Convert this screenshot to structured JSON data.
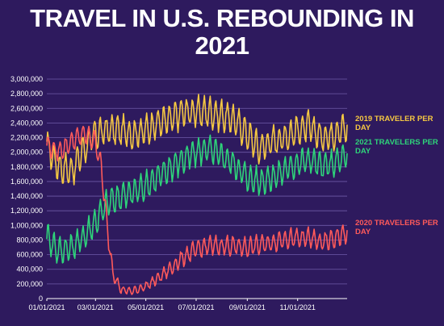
{
  "chart_data": {
    "type": "line",
    "title": "TRAVEL IN U.S. REBOUNDING IN 2021",
    "xlabel": "",
    "ylabel": "",
    "x_ticks": [
      "01/01/2021",
      "03/01/2021",
      "05/01/2021",
      "07/01/2021",
      "09/01/2021",
      "11/01/2021"
    ],
    "y_ticks": [
      "0",
      "200,000",
      "400,000",
      "600,000",
      "800,000",
      "1,000,000",
      "1,200,000",
      "1,400,000",
      "1,600,000",
      "1,800,000",
      "2,000,000",
      "2,200,000",
      "2,400,000",
      "2,600,000",
      "2,800,000",
      "3,000,000"
    ],
    "ylim": [
      0,
      3000000
    ],
    "x_range": [
      "2021-01-01",
      "2021-12-31"
    ],
    "grid": true,
    "legend": "right (labels at line ends)",
    "series": [
      {
        "name": "2019 TRAVELER PER DAY",
        "color": "#f5c842",
        "x": [
          "2021-01-01",
          "2021-01-15",
          "2021-02-01",
          "2021-02-15",
          "2021-03-01",
          "2021-03-15",
          "2021-04-01",
          "2021-04-15",
          "2021-05-01",
          "2021-05-15",
          "2021-06-01",
          "2021-06-15",
          "2021-07-01",
          "2021-07-15",
          "2021-08-01",
          "2021-08-15",
          "2021-09-01",
          "2021-09-15",
          "2021-10-01",
          "2021-10-15",
          "2021-11-01",
          "2021-11-15",
          "2021-12-01",
          "2021-12-15",
          "2021-12-31"
        ],
        "values": [
          2100000,
          1800000,
          1750000,
          2050000,
          2250000,
          2300000,
          2300000,
          2250000,
          2300000,
          2400000,
          2450000,
          2550000,
          2550000,
          2550000,
          2500000,
          2450000,
          2250000,
          2050000,
          2150000,
          2200000,
          2300000,
          2350000,
          2200000,
          2250000,
          2350000
        ]
      },
      {
        "name": "2021 TRAVELERS PER DAY",
        "color": "#2ed47a",
        "x": [
          "2021-01-01",
          "2021-01-15",
          "2021-02-01",
          "2021-02-15",
          "2021-03-01",
          "2021-03-15",
          "2021-04-01",
          "2021-04-15",
          "2021-05-01",
          "2021-05-15",
          "2021-06-01",
          "2021-06-15",
          "2021-07-01",
          "2021-07-15",
          "2021-08-01",
          "2021-08-15",
          "2021-09-01",
          "2021-09-15",
          "2021-10-01",
          "2021-10-15",
          "2021-11-01",
          "2021-11-15",
          "2021-12-01",
          "2021-12-15",
          "2021-12-31"
        ],
        "values": [
          850000,
          650000,
          700000,
          850000,
          1050000,
          1300000,
          1400000,
          1450000,
          1550000,
          1650000,
          1800000,
          1900000,
          2000000,
          2050000,
          1950000,
          1850000,
          1650000,
          1600000,
          1650000,
          1750000,
          1850000,
          1900000,
          1800000,
          1850000,
          1950000
        ]
      },
      {
        "name": "2020 TRAVELERS PER DAY",
        "color": "#ff5a5a",
        "x": [
          "2021-01-01",
          "2021-01-15",
          "2021-02-01",
          "2021-02-15",
          "2021-03-01",
          "2021-03-08",
          "2021-03-15",
          "2021-03-22",
          "2021-04-01",
          "2021-04-15",
          "2021-05-01",
          "2021-05-15",
          "2021-06-01",
          "2021-06-15",
          "2021-07-01",
          "2021-07-15",
          "2021-08-01",
          "2021-08-15",
          "2021-09-01",
          "2021-09-15",
          "2021-10-01",
          "2021-10-15",
          "2021-11-01",
          "2021-11-15",
          "2021-12-01",
          "2021-12-15",
          "2021-12-31"
        ],
        "values": [
          2100000,
          2000000,
          2150000,
          2250000,
          2150000,
          1800000,
          1000000,
          350000,
          120000,
          100000,
          170000,
          270000,
          420000,
          560000,
          670000,
          720000,
          720000,
          720000,
          700000,
          730000,
          760000,
          820000,
          820000,
          830000,
          760000,
          820000,
          900000
        ]
      }
    ]
  }
}
